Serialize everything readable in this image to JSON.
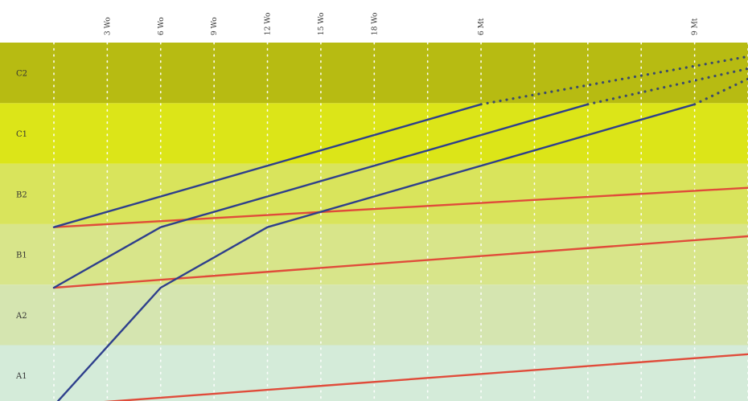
{
  "chart_data": {
    "type": "line",
    "title": "",
    "xlabel": "",
    "ylabel": "",
    "x_unit": "weeks",
    "xlim": [
      0,
      78
    ],
    "levels": [
      {
        "name": "A1",
        "color": "#d4ebd9"
      },
      {
        "name": "A2",
        "color": "#d5e5b0"
      },
      {
        "name": "B1",
        "color": "#d8e58a"
      },
      {
        "name": "B2",
        "color": "#d9e45c"
      },
      {
        "name": "C1",
        "color": "#dce518"
      },
      {
        "name": "C2",
        "color": "#b7bb12"
      }
    ],
    "ticks": [
      {
        "x": 6,
        "label": "3 Wo"
      },
      {
        "x": 12,
        "label": "6 Wo"
      },
      {
        "x": 18,
        "label": "9 Wo"
      },
      {
        "x": 24,
        "label": "12 Wo"
      },
      {
        "x": 30,
        "label": "15 Wo"
      },
      {
        "x": 36,
        "label": "18 Wo"
      },
      {
        "x": 48,
        "label": "6 Mt"
      },
      {
        "x": 72,
        "label": "9 Mt"
      }
    ],
    "grid_spacing_weeks": 6,
    "grid_style": "dotted-white",
    "series": [
      {
        "color": "#e04b3a",
        "style": "solid",
        "points": [
          [
            0,
            0.0
          ],
          [
            78,
            0.85
          ]
        ]
      },
      {
        "color": "#e04b3a",
        "style": "solid",
        "points": [
          [
            0,
            1.95
          ],
          [
            78,
            2.8
          ]
        ]
      },
      {
        "color": "#e04b3a",
        "style": "solid",
        "points": [
          [
            0,
            2.95
          ],
          [
            78,
            3.6
          ]
        ]
      },
      {
        "color": "#2e3f8c",
        "style": "solid",
        "points": [
          [
            0,
            0.0
          ],
          [
            12,
            1.95
          ],
          [
            24,
            2.95
          ],
          [
            72,
            4.98
          ]
        ]
      },
      {
        "color": "#2e3f8c",
        "style": "solid",
        "points": [
          [
            0,
            1.95
          ],
          [
            12,
            2.95
          ],
          [
            60,
            4.98
          ]
        ]
      },
      {
        "color": "#2e3f8c",
        "style": "solid",
        "points": [
          [
            0,
            2.95
          ],
          [
            48,
            4.98
          ]
        ]
      },
      {
        "color": "#3a4a6e",
        "style": "dotted",
        "points": [
          [
            48,
            4.98
          ],
          [
            78,
            5.77
          ]
        ]
      },
      {
        "color": "#3a4a6e",
        "style": "dotted",
        "points": [
          [
            60,
            4.98
          ],
          [
            78,
            5.57
          ]
        ]
      },
      {
        "color": "#3a4a6e",
        "style": "dotted",
        "points": [
          [
            72,
            4.98
          ],
          [
            78,
            5.4
          ]
        ]
      }
    ]
  }
}
